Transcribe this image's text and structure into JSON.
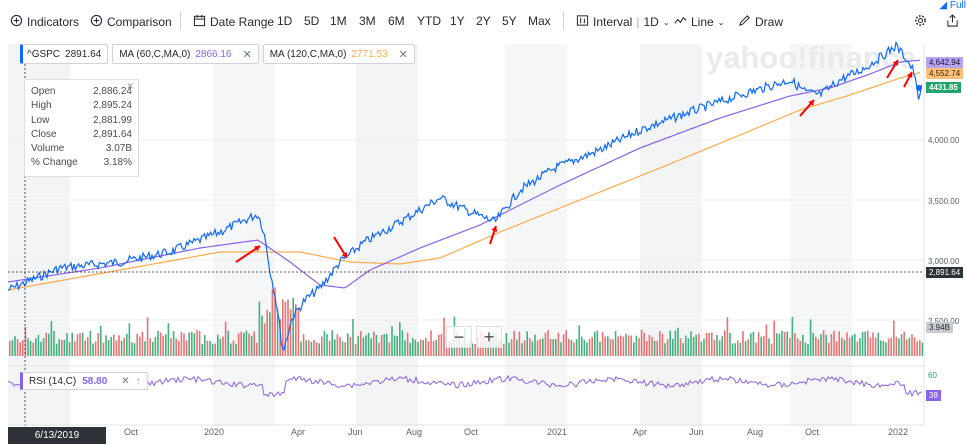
{
  "toolbar": {
    "indicators_label": "Indicators",
    "comparison_label": "Comparison",
    "date_range_label": "Date Range",
    "ranges": [
      "1D",
      "5D",
      "1M",
      "3M",
      "6M",
      "YTD",
      "1Y",
      "2Y",
      "5Y",
      "Max"
    ],
    "interval_label": "Interval",
    "interval_value": "1D",
    "chart_type_label": "Line",
    "draw_label": "Draw",
    "full_label": "Full"
  },
  "legend": {
    "main_symbol": "^GSPC",
    "main_value": "2891.64",
    "ma60_label": "MA (60,C,MA,0)",
    "ma60_value": "2866.16",
    "ma120_label": "MA (120,C,MA,0)",
    "ma120_value": "2771.53"
  },
  "ohlc": {
    "open_label": "Open",
    "open_value": "2,886.24",
    "high_label": "High",
    "high_value": "2,895.24",
    "low_label": "Low",
    "low_value": "2,881.99",
    "close_label": "Close",
    "close_value": "2,891.64",
    "volume_label": "Volume",
    "volume_value": "3.07B",
    "change_label": "% Change",
    "change_value": "3.18%"
  },
  "rsi": {
    "label": "RSI (14,C)",
    "value": "58.80"
  },
  "watermark": "yahoo!finance",
  "cursor_date": "6/13/2019",
  "x_labels": [
    "Oct",
    "2020",
    "Apr",
    "Jun",
    "Aug",
    "Oct",
    "2021",
    "Apr",
    "Jun",
    "Aug",
    "Oct",
    "2022"
  ],
  "y_labels": [
    "4,000.00",
    "3,500.00",
    "3,000.00",
    "2,500.00"
  ],
  "price_tags": {
    "ma60": "4,642.94",
    "ma120": "4,552.74",
    "last": "4431.85",
    "cursor": "2,891.64",
    "volume": "3.94B",
    "rsi_top": "60",
    "rsi_value": "38"
  },
  "colors": {
    "price": "#0f69ff",
    "ma60": "#8a63ea",
    "ma120": "#ffab4a",
    "up_bar": "#21a56a",
    "down_bar": "#e85a5a",
    "annotation": "#ff0000"
  }
}
